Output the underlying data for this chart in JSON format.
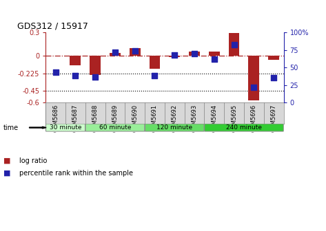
{
  "title": "GDS312 / 15917",
  "samples": [
    "GSM5686",
    "GSM5687",
    "GSM5688",
    "GSM5689",
    "GSM5690",
    "GSM5691",
    "GSM5692",
    "GSM5693",
    "GSM5694",
    "GSM5695",
    "GSM5696",
    "GSM5697"
  ],
  "log_ratio": [
    0.0,
    -0.12,
    -0.25,
    0.04,
    0.1,
    -0.17,
    -0.02,
    0.05,
    0.05,
    0.29,
    -0.57,
    -0.05
  ],
  "percentile_rank": [
    43,
    38,
    36,
    72,
    74,
    38,
    68,
    70,
    62,
    82,
    22,
    35
  ],
  "bar_color": "#aa2222",
  "dot_color": "#2222aa",
  "ylim_left": [
    -0.6,
    0.3
  ],
  "ylim_right": [
    0,
    100
  ],
  "yticks_left": [
    -0.6,
    -0.45,
    -0.225,
    0.0,
    0.3
  ],
  "ytick_labels_left": [
    "-0.6",
    "-0.45",
    "-0.225",
    "0",
    "0.3"
  ],
  "yticks_right": [
    0,
    25,
    50,
    75,
    100
  ],
  "ytick_labels_right": [
    "0",
    "25",
    "50",
    "75",
    "100%"
  ],
  "hline_y": 0.0,
  "dotted_lines": [
    -0.225,
    -0.45
  ],
  "groups": [
    {
      "label": "30 minute",
      "start": 0,
      "end": 1,
      "color": "#ccffcc"
    },
    {
      "label": "60 minute",
      "start": 2,
      "end": 4,
      "color": "#99ee99"
    },
    {
      "label": "120 minute",
      "start": 5,
      "end": 7,
      "color": "#66dd66"
    },
    {
      "label": "240 minute",
      "start": 8,
      "end": 11,
      "color": "#33cc33"
    }
  ],
  "time_label": "time",
  "legend_bar_label": "log ratio",
  "legend_dot_label": "percentile rank within the sample",
  "bar_width": 0.55,
  "dot_size": 40
}
